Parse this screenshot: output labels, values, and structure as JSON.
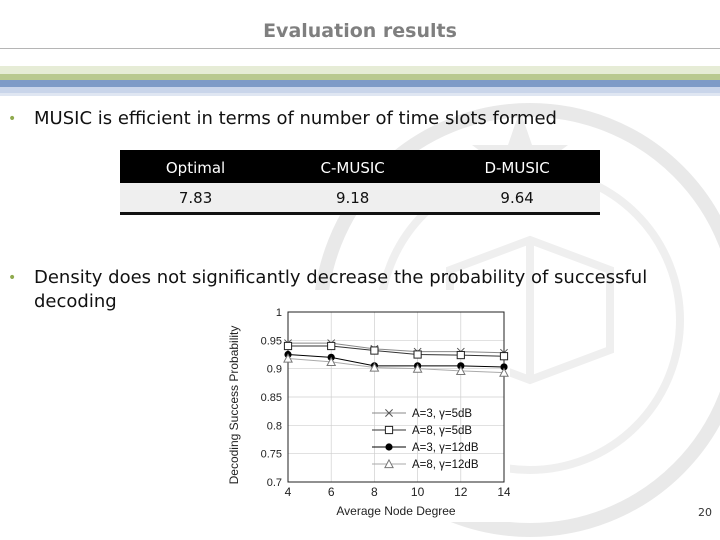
{
  "slide": {
    "title": "Evaluation results",
    "bullets": [
      "MUSIC is efficient in terms of number of time slots formed",
      "Density does not significantly decrease the probability of successful",
      "decoding"
    ],
    "page_number": "20",
    "colors": {
      "bullet": "#8faa4e",
      "title": "#7f7f7f"
    }
  },
  "table": {
    "headers": [
      "Optimal",
      "C-MUSIC",
      "D-MUSIC"
    ],
    "rows": [
      [
        "7.83",
        "9.18",
        "9.64"
      ]
    ]
  },
  "chart_data": {
    "type": "line",
    "xlabel": "Average Node Degree",
    "ylabel": "Decoding Success Probability",
    "x": [
      4,
      6,
      8,
      10,
      12,
      14
    ],
    "xlim": [
      4,
      14
    ],
    "ylim": [
      0.7,
      1.0
    ],
    "xticks": [
      "4",
      "6",
      "8",
      "10",
      "12",
      "14"
    ],
    "yticks": [
      "0.7",
      "0.75",
      "0.8",
      "0.85",
      "0.9",
      "0.95",
      "1"
    ],
    "grid": true,
    "legend": "bottom-right",
    "series": [
      {
        "name": "A=3, γ=5dB",
        "marker": "x",
        "values": [
          0.945,
          0.945,
          0.935,
          0.93,
          0.93,
          0.928
        ]
      },
      {
        "name": "A=8, γ=5dB",
        "marker": "square",
        "values": [
          0.94,
          0.94,
          0.932,
          0.925,
          0.924,
          0.922
        ]
      },
      {
        "name": "A=3, γ=12dB",
        "marker": "circle",
        "values": [
          0.925,
          0.92,
          0.905,
          0.905,
          0.905,
          0.903
        ]
      },
      {
        "name": "A=8, γ=12dB",
        "marker": "triangle",
        "values": [
          0.918,
          0.912,
          0.902,
          0.9,
          0.896,
          0.893
        ]
      }
    ]
  }
}
